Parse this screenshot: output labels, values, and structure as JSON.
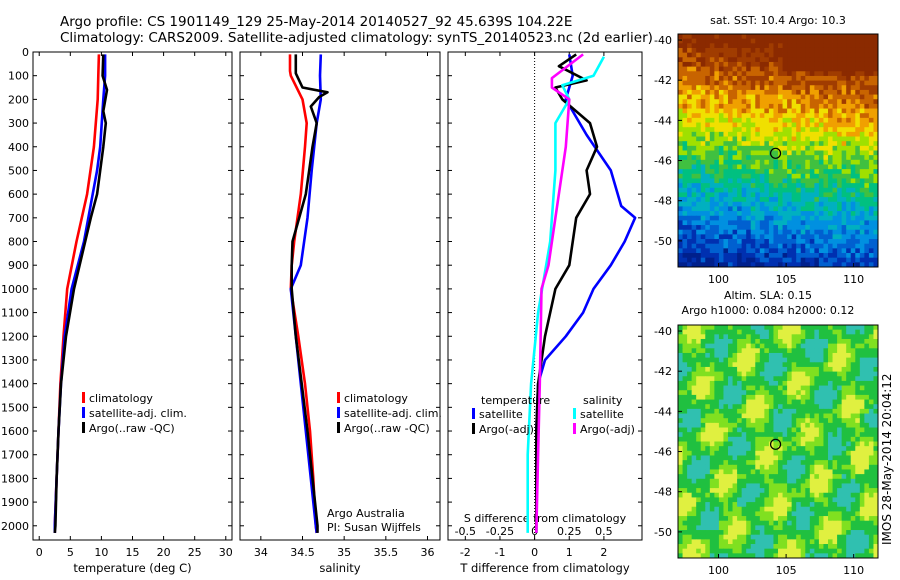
{
  "header": {
    "line1": "Argo profile: CS 1901149_129 25-May-2014 20140527_92 45.639S 104.22E",
    "line2": "Climatology: CARS2009. Satellite-adjusted climatology: synTS_20140523.nc (2d earlier)"
  },
  "side_label": "IMOS 28-May-2014 20:04:12",
  "colors": {
    "climatology": "#ff0000",
    "satellite": "#0000ff",
    "argo": "#000000",
    "sat_salinity": "#00ffff",
    "argo_salinity": "#ff00ff"
  },
  "chart_data": [
    {
      "id": "temperature",
      "type": "line",
      "xlabel": "temperature (deg C)",
      "xlim": [
        -1,
        31
      ],
      "xticks": [
        "0",
        "5",
        "10",
        "15",
        "20",
        "25",
        "30"
      ],
      "ylim": [
        2060,
        0
      ],
      "yticks": [
        "0",
        "100",
        "200",
        "300",
        "400",
        "500",
        "600",
        "700",
        "800",
        "900",
        "1000",
        "1100",
        "1200",
        "1300",
        "1400",
        "1500",
        "1600",
        "1700",
        "1800",
        "1900",
        "2000"
      ],
      "legend": [
        "climatology",
        "satellite-adj. clim.",
        "Argo(..raw -QC)"
      ],
      "series": [
        {
          "name": "climatology",
          "color": "#ff0000",
          "points": [
            [
              9.6,
              10
            ],
            [
              9.5,
              100
            ],
            [
              9.4,
              200
            ],
            [
              8.8,
              400
            ],
            [
              7.7,
              600
            ],
            [
              6,
              800
            ],
            [
              4.5,
              1000
            ],
            [
              3.9,
              1200
            ],
            [
              3.4,
              1400
            ],
            [
              3.1,
              1600
            ],
            [
              2.8,
              1800
            ],
            [
              2.5,
              2000
            ],
            [
              2.5,
              2030
            ]
          ]
        },
        {
          "name": "satellite-adj. clim.",
          "color": "#0000ff",
          "points": [
            [
              10.6,
              10
            ],
            [
              10.6,
              100
            ],
            [
              10.3,
              200
            ],
            [
              9.8,
              400
            ],
            [
              9.3,
              500
            ],
            [
              8.6,
              600
            ],
            [
              7.2,
              800
            ],
            [
              5.2,
              1000
            ],
            [
              4.1,
              1200
            ],
            [
              3.5,
              1400
            ],
            [
              3.1,
              1600
            ],
            [
              2.8,
              1800
            ],
            [
              2.5,
              2000
            ],
            [
              2.5,
              2030
            ]
          ]
        },
        {
          "name": "Argo(..raw -QC)",
          "color": "#000000",
          "points": [
            [
              10.3,
              10
            ],
            [
              10.2,
              100
            ],
            [
              10.9,
              160
            ],
            [
              10.3,
              250
            ],
            [
              10.7,
              300
            ],
            [
              10.3,
              400
            ],
            [
              9.8,
              500
            ],
            [
              9.3,
              600
            ],
            [
              8.3,
              700
            ],
            [
              7.4,
              800
            ],
            [
              5.6,
              1000
            ],
            [
              4.3,
              1200
            ],
            [
              3.5,
              1400
            ],
            [
              3.1,
              1600
            ],
            [
              2.8,
              1800
            ],
            [
              2.6,
              2000
            ],
            [
              2.5,
              2030
            ]
          ]
        }
      ]
    },
    {
      "id": "salinity",
      "type": "line",
      "xlabel": "salinity",
      "xlim": [
        33.75,
        36.15
      ],
      "xticks": [
        "34",
        "34.5",
        "35",
        "35.5",
        "36"
      ],
      "ylim": [
        2060,
        0
      ],
      "legend": [
        "climatology",
        "satellite-adj. clim.",
        "Argo(..raw -QC)"
      ],
      "notes": [
        "Argo Australia",
        "PI: Susan Wijffels"
      ],
      "series": [
        {
          "name": "climatology",
          "color": "#ff0000",
          "points": [
            [
              34.35,
              10
            ],
            [
              34.35,
              80
            ],
            [
              34.36,
              100
            ],
            [
              34.5,
              200
            ],
            [
              34.55,
              300
            ],
            [
              34.53,
              400
            ],
            [
              34.48,
              600
            ],
            [
              34.4,
              800
            ],
            [
              34.37,
              900
            ],
            [
              34.36,
              1000
            ],
            [
              34.45,
              1200
            ],
            [
              34.53,
              1400
            ],
            [
              34.59,
              1600
            ],
            [
              34.63,
              1800
            ],
            [
              34.66,
              2000
            ],
            [
              34.67,
              2030
            ]
          ]
        },
        {
          "name": "satellite-adj. clim.",
          "color": "#0000ff",
          "points": [
            [
              34.72,
              10
            ],
            [
              34.71,
              100
            ],
            [
              34.72,
              200
            ],
            [
              34.67,
              300
            ],
            [
              34.64,
              400
            ],
            [
              34.61,
              500
            ],
            [
              34.56,
              700
            ],
            [
              34.48,
              900
            ],
            [
              34.36,
              1000
            ],
            [
              34.42,
              1200
            ],
            [
              34.48,
              1400
            ],
            [
              34.54,
              1600
            ],
            [
              34.6,
              1800
            ],
            [
              34.66,
              2000
            ],
            [
              34.67,
              2030
            ]
          ]
        },
        {
          "name": "Argo(..raw -QC)",
          "color": "#000000",
          "points": [
            [
              34.42,
              10
            ],
            [
              34.42,
              90
            ],
            [
              34.5,
              150
            ],
            [
              34.8,
              170
            ],
            [
              34.7,
              190
            ],
            [
              34.6,
              230
            ],
            [
              34.67,
              300
            ],
            [
              34.62,
              400
            ],
            [
              34.58,
              500
            ],
            [
              34.54,
              600
            ],
            [
              34.46,
              700
            ],
            [
              34.38,
              800
            ],
            [
              34.37,
              900
            ],
            [
              34.37,
              1000
            ],
            [
              34.42,
              1200
            ],
            [
              34.49,
              1400
            ],
            [
              34.56,
              1600
            ],
            [
              34.62,
              1800
            ],
            [
              34.68,
              2000
            ],
            [
              34.68,
              2030
            ]
          ]
        }
      ]
    },
    {
      "id": "difference",
      "type": "line",
      "xlabel": "T difference from climatology",
      "xlabel_top": "S difference from climatology",
      "xlim": [
        -2.5,
        3.1
      ],
      "xticks": [
        "-2",
        "-1",
        "0",
        "1",
        "2"
      ],
      "xticks_top": [
        "-0.5",
        "-0.25",
        "0",
        "0.25",
        "0.5"
      ],
      "ylim": [
        2060,
        0
      ],
      "legend_headers": [
        "temperature",
        "salinity"
      ],
      "legend": [
        "satellite",
        "Argo(-adj)",
        "satellite",
        "Argo(-adj)"
      ],
      "series": [
        {
          "name": "temperature satellite",
          "color": "#0000ff",
          "points": [
            [
              1,
              10
            ],
            [
              1.1,
              100
            ],
            [
              0.9,
              200
            ],
            [
              1.5,
              350
            ],
            [
              2.2,
              500
            ],
            [
              2.5,
              650
            ],
            [
              2.9,
              700
            ],
            [
              2.6,
              800
            ],
            [
              2.2,
              900
            ],
            [
              1.7,
              1000
            ],
            [
              1.4,
              1100
            ],
            [
              0.9,
              1200
            ],
            [
              0.3,
              1300
            ],
            [
              0.1,
              1400
            ],
            [
              0.05,
              1600
            ],
            [
              0.05,
              2030
            ]
          ]
        },
        {
          "name": "temperature Argo(-adj)",
          "color": "#000000",
          "points": [
            [
              1.2,
              10
            ],
            [
              0.7,
              60
            ],
            [
              1.5,
              120
            ],
            [
              0.6,
              150
            ],
            [
              0.8,
              200
            ],
            [
              1.6,
              300
            ],
            [
              1.8,
              400
            ],
            [
              1.5,
              500
            ],
            [
              1.6,
              600
            ],
            [
              1.2,
              700
            ],
            [
              1.0,
              900
            ],
            [
              0.6,
              1000
            ],
            [
              0.3,
              1200
            ],
            [
              0.1,
              1400
            ],
            [
              0.05,
              1600
            ],
            [
              0.05,
              2030
            ]
          ]
        },
        {
          "name": "salinity satellite",
          "color": "#00ffff",
          "points": [
            [
              2,
              20
            ],
            [
              1.7,
              100
            ],
            [
              0.8,
              140
            ],
            [
              1.0,
              200
            ],
            [
              0.6,
              300
            ],
            [
              0.6,
              500
            ],
            [
              0.45,
              800
            ],
            [
              0.1,
              1100
            ],
            [
              -0.1,
              1400
            ],
            [
              -0.2,
              1700
            ],
            [
              -0.2,
              2030
            ]
          ]
        },
        {
          "name": "salinity Argo(-adj)",
          "color": "#ff00ff",
          "points": [
            [
              1.4,
              10
            ],
            [
              0.5,
              110
            ],
            [
              0.5,
              150
            ],
            [
              1.0,
              200
            ],
            [
              0.9,
              400
            ],
            [
              0.6,
              700
            ],
            [
              0.4,
              900
            ],
            [
              0.2,
              1000
            ],
            [
              0.15,
              1400
            ],
            [
              0.1,
              1700
            ],
            [
              0.05,
              2030
            ]
          ]
        }
      ]
    },
    {
      "id": "sst-map",
      "type": "heatmap",
      "title": "sat. SST: 10.4 Argo: 10.3",
      "xticks": [
        "100",
        "105",
        "110"
      ],
      "yticks": [
        "-40",
        "-42",
        "-44",
        "-46",
        "-48",
        "-50"
      ],
      "xlim": [
        97,
        111.8
      ],
      "ylim": [
        -51.3,
        -39.7
      ],
      "marker": [
        104.22,
        -45.64
      ]
    },
    {
      "id": "sla-map",
      "type": "heatmap",
      "title": "Altim. SLA: 0.15",
      "subtitle": "Argo h1000: 0.084 h2000: 0.12",
      "xticks": [
        "100",
        "105",
        "110"
      ],
      "yticks": [
        "-40",
        "-42",
        "-44",
        "-46",
        "-48",
        "-50"
      ],
      "xlim": [
        97,
        111.8
      ],
      "ylim": [
        -51.3,
        -39.7
      ],
      "marker": [
        104.22,
        -45.64
      ]
    }
  ]
}
